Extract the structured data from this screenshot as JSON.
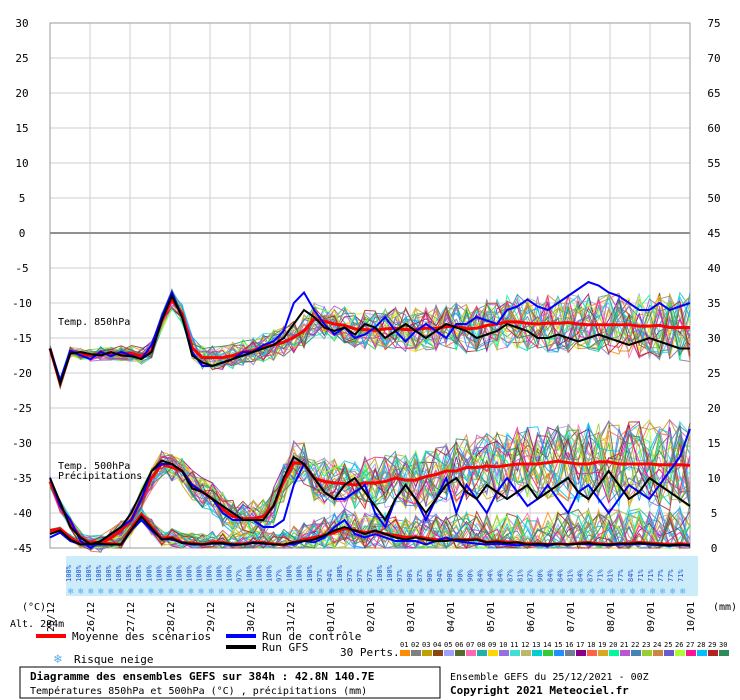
{
  "chart_data": {
    "type": "line",
    "title": "Diagramme des ensembles GEFS sur 384h : 42.8N 140.7E",
    "subtitle": "Températures 850hPa et 500hPa (°C) , précipitations (mm)",
    "run_info": "Ensemble GEFS du 25/12/2021 - 00Z",
    "copyright": "Copyright 2021 Meteociel.fr",
    "altitude": "Alt. 284m",
    "left_axis": {
      "unit": "(°C)",
      "ticks": [
        30,
        25,
        20,
        15,
        10,
        5,
        0,
        -5,
        -10,
        -15,
        -20,
        -25,
        -30,
        -35,
        -40,
        -45
      ],
      "range": [
        -45,
        30
      ]
    },
    "right_axis": {
      "unit": "(mm)",
      "ticks": [
        75,
        70,
        65,
        60,
        55,
        50,
        45,
        40,
        35,
        30,
        25,
        20,
        15,
        10,
        5,
        0
      ],
      "range": [
        0,
        75
      ]
    },
    "x_axis": {
      "labels": [
        "25/12",
        "26/12",
        "27/12",
        "28/12",
        "29/12",
        "30/12",
        "31/12",
        "01/01",
        "02/01",
        "03/01",
        "04/01",
        "05/01",
        "06/01",
        "07/01",
        "08/01",
        "09/01",
        "10/01"
      ]
    },
    "panel_labels": {
      "t850": "Temp. 850hPa",
      "t500": "Temp. 500hPa",
      "precip": "Précipitations"
    },
    "snow_risk": [
      100,
      100,
      100,
      100,
      100,
      100,
      100,
      100,
      100,
      100,
      100,
      100,
      100,
      100,
      100,
      100,
      100,
      97,
      100,
      100,
      100,
      97,
      100,
      100,
      100,
      97,
      94,
      100,
      97,
      97,
      97,
      100,
      100,
      97,
      90,
      87,
      90,
      94,
      90,
      90,
      90,
      84,
      94,
      84,
      87,
      81,
      87,
      90,
      84,
      84,
      81,
      84,
      87,
      71,
      81,
      77,
      84,
      71,
      71,
      77,
      77,
      71
    ],
    "series": [
      {
        "name": "Moyenne des scénarios",
        "color": "#ff0000",
        "t850": [
          -16.5,
          -21.5,
          -17,
          -17.3,
          -17.5,
          -17.2,
          -17.3,
          -17.2,
          -17.2,
          -17.6,
          -16.8,
          -12.5,
          -9.5,
          -11.5,
          -16.4,
          -17.8,
          -17.8,
          -17.8,
          -17.5,
          -17,
          -16.8,
          -16.3,
          -16,
          -15.6,
          -14.9,
          -14,
          -12.3,
          -12.6,
          -13,
          -13.2,
          -13.7,
          -13.8,
          -13.9,
          -13.7,
          -13.6,
          -13.8,
          -13.8,
          -13.6,
          -13.6,
          -13.4,
          -13.3,
          -13.7,
          -13.6,
          -13.2,
          -13,
          -12.7,
          -12.7,
          -12.9,
          -13,
          -12.9,
          -12.9,
          -12.8,
          -13,
          -13.1,
          -13.1,
          -13.1,
          -13.1,
          -13.1,
          -13.3,
          -13.3,
          -13.2,
          -13.5,
          -13.5,
          -13.5
        ],
        "t500": [
          -35.5,
          -39,
          -41.5,
          -43.5,
          -44.3,
          -44.4,
          -43.5,
          -42.5,
          -41,
          -38,
          -35,
          -33,
          -33.5,
          -34,
          -36,
          -37,
          -38,
          -39.5,
          -40.5,
          -40.8,
          -40.8,
          -40.5,
          -39,
          -35.5,
          -32.8,
          -33,
          -35,
          -35.5,
          -35.7,
          -35.8,
          -36,
          -35.7,
          -35.7,
          -35.5,
          -35,
          -35.3,
          -35.3,
          -34.8,
          -34.5,
          -34,
          -34,
          -33.5,
          -33.5,
          -33.3,
          -33.4,
          -33.2,
          -33,
          -33,
          -33,
          -32.8,
          -32.6,
          -32.8,
          -33,
          -33,
          -32.7,
          -32.7,
          -33,
          -33,
          -33,
          -33,
          -33.1,
          -33.1,
          -33.1,
          -33.2
        ],
        "precip": [
          2.5,
          2.7,
          1.5,
          0.6,
          0.8,
          0.8,
          0.6,
          0.5,
          2.8,
          4.8,
          3,
          1.4,
          1.5,
          0.8,
          0.7,
          0.5,
          0.8,
          0.8,
          0.5,
          0.6,
          0.8,
          0.8,
          0.6,
          0.4,
          0.8,
          1.2,
          1.5,
          1.8,
          2.2,
          2.8,
          2.5,
          2.2,
          2.4,
          2.0,
          1.8,
          1.5,
          1.6,
          1.4,
          1.2,
          1.2,
          1.2,
          1.2,
          1.3,
          0.8,
          1,
          0.8,
          0.8,
          0.6,
          0.6,
          0.5,
          0.6,
          0.5,
          0.7,
          0.8,
          0.6,
          0.5,
          0.6,
          0.7,
          0.8,
          0.7,
          0.6,
          0.5,
          0.6,
          0.5
        ]
      },
      {
        "name": "Run de contrôle",
        "color": "#0000ff",
        "t850": [
          -16.5,
          -21,
          -16.8,
          -17.5,
          -18,
          -17,
          -17.6,
          -17,
          -17.5,
          -18,
          -16,
          -12,
          -8.5,
          -12,
          -17,
          -19,
          -19,
          -18.5,
          -18,
          -17,
          -17,
          -16,
          -15.5,
          -14,
          -10,
          -8.5,
          -11,
          -13,
          -14.5,
          -13.5,
          -15,
          -14.5,
          -13.5,
          -12,
          -14,
          -15.5,
          -14,
          -13,
          -14,
          -15,
          -13,
          -13,
          -12,
          -12.5,
          -13,
          -11,
          -10.5,
          -9.5,
          -10.5,
          -11,
          -10,
          -9,
          -8,
          -7,
          -7.5,
          -8.5,
          -9,
          -10,
          -11,
          -11,
          -10,
          -11,
          -10.5,
          -10
        ],
        "t500": [
          -35,
          -39,
          -41,
          -44,
          -45,
          -44,
          -43,
          -42,
          -41,
          -38,
          -34,
          -33,
          -33,
          -34,
          -36,
          -37,
          -38,
          -40,
          -41,
          -41,
          -41,
          -42,
          -42,
          -41,
          -36,
          -33,
          -35,
          -37,
          -38,
          -38,
          -37,
          -36,
          -40,
          -42,
          -38,
          -36,
          -38,
          -41,
          -38,
          -35,
          -40,
          -36,
          -38,
          -40,
          -37,
          -35,
          -37,
          -39,
          -38,
          -36,
          -38,
          -40,
          -37,
          -36,
          -38,
          -40,
          -38,
          -36,
          -37,
          -38,
          -36,
          -34,
          -32,
          -28
        ],
        "precip": [
          1.5,
          2.2,
          1,
          0.5,
          0.5,
          0.5,
          0.5,
          0.5,
          2.5,
          4,
          2.5,
          1.3,
          1.2,
          0.8,
          0.5,
          0.5,
          0.6,
          0.6,
          0.4,
          0.5,
          0.8,
          0.6,
          0.5,
          0.5,
          0.5,
          1,
          0.8,
          1.5,
          3,
          4,
          2,
          1.5,
          2,
          1.5,
          1,
          1,
          1,
          0.5,
          1,
          1.5,
          1,
          0.8,
          0.6,
          0.5,
          0.6,
          0.5,
          0.4,
          0.5,
          0.4,
          0.3,
          0.6,
          0.5,
          0.6,
          0.5,
          0.5,
          0.4,
          0.5,
          0.5,
          0.6,
          0.5,
          0.4,
          0.3,
          0.4,
          0.3
        ]
      },
      {
        "name": "Run GFS",
        "color": "#000000",
        "t850": [
          -16.5,
          -21.5,
          -17.2,
          -17,
          -17.3,
          -17.5,
          -17,
          -17.5,
          -17.6,
          -18,
          -17,
          -12.5,
          -9,
          -12,
          -17.5,
          -18.5,
          -19,
          -18.5,
          -18,
          -17.5,
          -17,
          -16.5,
          -16,
          -15,
          -13,
          -11,
          -12,
          -13.5,
          -14,
          -13.5,
          -14.5,
          -13,
          -13.5,
          -15,
          -14,
          -13,
          -14,
          -15,
          -14,
          -13,
          -13.5,
          -14,
          -15,
          -14.5,
          -14,
          -13,
          -13.5,
          -14,
          -15,
          -15,
          -14.5,
          -15,
          -15.5,
          -15,
          -14.5,
          -15,
          -15.5,
          -16,
          -15.5,
          -15,
          -15.5,
          -16,
          -16.5,
          -16.5
        ],
        "t500": [
          -35,
          -38.5,
          -42,
          -43.5,
          -44.5,
          -44,
          -43,
          -42,
          -40,
          -37,
          -34,
          -32.5,
          -33,
          -34,
          -36.5,
          -37,
          -38,
          -39,
          -40,
          -41,
          -41,
          -41,
          -39,
          -35,
          -32,
          -33,
          -35,
          -37,
          -38,
          -36,
          -35,
          -37,
          -39,
          -41,
          -38,
          -36,
          -38,
          -40,
          -38,
          -36,
          -35,
          -37,
          -38,
          -36,
          -37,
          -38,
          -37,
          -36,
          -38,
          -37,
          -36,
          -35,
          -37,
          -38,
          -36,
          -34,
          -36,
          -38,
          -37,
          -35,
          -36,
          -37,
          -38,
          -39
        ],
        "precip": [
          2,
          2.5,
          1.2,
          0.5,
          0.6,
          0.6,
          0.5,
          0.5,
          2.6,
          4.5,
          2.8,
          1.2,
          1.4,
          0.7,
          0.6,
          0.5,
          0.7,
          0.7,
          0.5,
          0.5,
          0.7,
          0.7,
          0.5,
          0.5,
          0.8,
          1,
          1.2,
          1.8,
          2.5,
          3,
          2.5,
          2,
          2.5,
          2,
          1.5,
          1.2,
          1.5,
          1.2,
          1,
          1,
          1.2,
          1.1,
          1.2,
          0.8,
          0.9,
          0.7,
          0.8,
          0.5,
          0.6,
          0.5,
          0.6,
          0.5,
          0.6,
          0.7,
          0.5,
          0.5,
          0.6,
          0.6,
          0.7,
          0.6,
          0.5,
          0.4,
          0.5,
          0.4
        ]
      }
    ],
    "perturbation_members": {
      "label": "30 Perts.",
      "ids": [
        "01",
        "02",
        "03",
        "04",
        "05",
        "06",
        "07",
        "08",
        "09",
        "10",
        "11",
        "12",
        "13",
        "14",
        "15",
        "16",
        "17",
        "18",
        "19",
        "20",
        "21",
        "22",
        "23",
        "24",
        "25",
        "26",
        "27",
        "28",
        "29",
        "30"
      ],
      "colors": [
        "#ff8c00",
        "#808080",
        "#c0a000",
        "#8b4513",
        "#a0a0ff",
        "#556b2f",
        "#ff69b4",
        "#20b2aa",
        "#ffd700",
        "#9370db",
        "#40e0d0",
        "#bdb76b",
        "#00ced1",
        "#32cd32",
        "#1e90ff",
        "#708090",
        "#8b008b",
        "#ff6347",
        "#daa520",
        "#00fa9a",
        "#ba55d3",
        "#4682b4",
        "#9acd32",
        "#cd853f",
        "#6a5acd",
        "#adff2f",
        "#ff1493",
        "#00bfff",
        "#b22222",
        "#2e8b57"
      ]
    },
    "legend": {
      "mean_label": "Moyenne des scénarios",
      "control_label": "Run de contrôle",
      "gfs_label": "Run GFS",
      "snow_label": "Risque neige"
    },
    "grid": true
  }
}
